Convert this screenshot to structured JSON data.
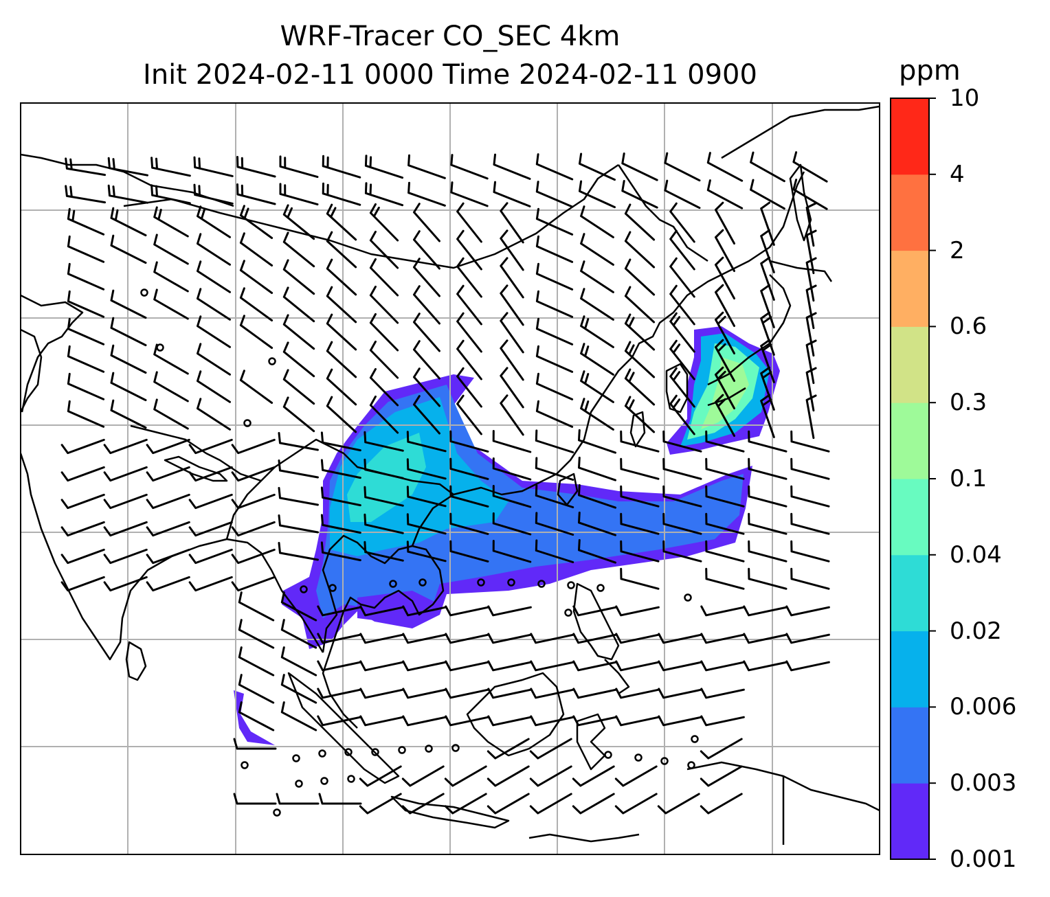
{
  "title": {
    "line1": "WRF-Tracer CO_SEC 4km",
    "line2": "Init 2024-02-11 0000 Time 2024-02-11 0900"
  },
  "colorbar": {
    "unit": "ppm",
    "levels": [
      "0.001",
      "0.003",
      "0.006",
      "0.02",
      "0.04",
      "0.1",
      "0.3",
      "0.6",
      "2",
      "4",
      "10"
    ],
    "colors": [
      "#6129f8",
      "#3474f4",
      "#06b1ec",
      "#2edcd6",
      "#68fbc0",
      "#9efa99",
      "#d1e387",
      "#ffaf62",
      "#ff7140",
      "#ff2818"
    ]
  },
  "map": {
    "gridlines": true,
    "background": "#ffffff",
    "coastline_color": "#000000",
    "gridline_color": "#b0b0b0"
  }
}
